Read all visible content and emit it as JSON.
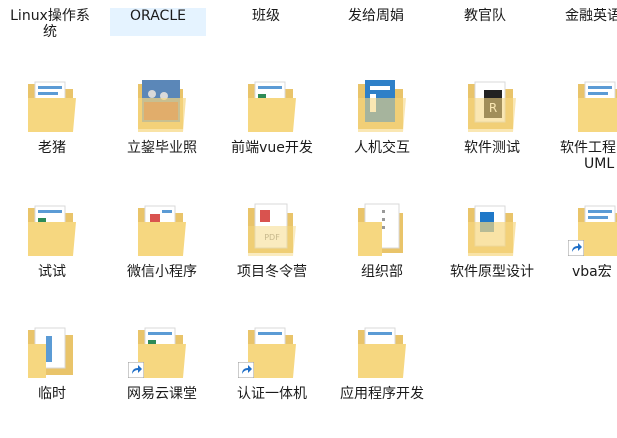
{
  "top_row": [
    {
      "label": "Linux操作系",
      "label2": "统",
      "selected": false
    },
    {
      "label": "ORACLE",
      "label2": "",
      "selected": true
    },
    {
      "label": "班级",
      "label2": "",
      "selected": false
    },
    {
      "label": "发给周娟",
      "label2": "",
      "selected": false
    },
    {
      "label": "教官队",
      "label2": "",
      "selected": false
    },
    {
      "label": "金融英语",
      "label2": "",
      "selected": false
    }
  ],
  "rows": [
    [
      {
        "label": "老猪",
        "icon": "folder-docs-icon",
        "shortcut": false
      },
      {
        "label": "立鋆毕业照",
        "icon": "folder-photo-icon",
        "shortcut": false
      },
      {
        "label": "前端vue开发",
        "icon": "folder-docs-icon",
        "shortcut": false
      },
      {
        "label": "人机交互",
        "icon": "folder-blue-doc-icon",
        "shortcut": false
      },
      {
        "label": "软件测试",
        "icon": "folder-r-icon",
        "shortcut": false
      },
      {
        "label": "软件工程",
        "label2": "UML",
        "icon": "folder-docs-icon",
        "shortcut": false
      }
    ],
    [
      {
        "label": "试试",
        "icon": "folder-docs-icon",
        "shortcut": false
      },
      {
        "label": "微信小程序",
        "icon": "folder-red-doc-icon",
        "shortcut": false
      },
      {
        "label": "项目冬令营",
        "icon": "folder-pdf-icon",
        "shortcut": false
      },
      {
        "label": "组织部",
        "icon": "folder-docs-icon",
        "shortcut": false
      },
      {
        "label": "软件原型设计",
        "icon": "folder-blue-doc-icon",
        "shortcut": false
      },
      {
        "label": "vba宏",
        "icon": "folder-docs-icon",
        "shortcut": true
      }
    ],
    [
      {
        "label": "临时",
        "icon": "folder-docs-icon",
        "shortcut": false
      },
      {
        "label": "网易云课堂",
        "icon": "folder-docs-icon",
        "shortcut": true
      },
      {
        "label": "认证一体机",
        "icon": "folder-docs-icon",
        "shortcut": true
      },
      {
        "label": "应用程序开发",
        "icon": "folder-docs-icon",
        "shortcut": false
      }
    ]
  ]
}
